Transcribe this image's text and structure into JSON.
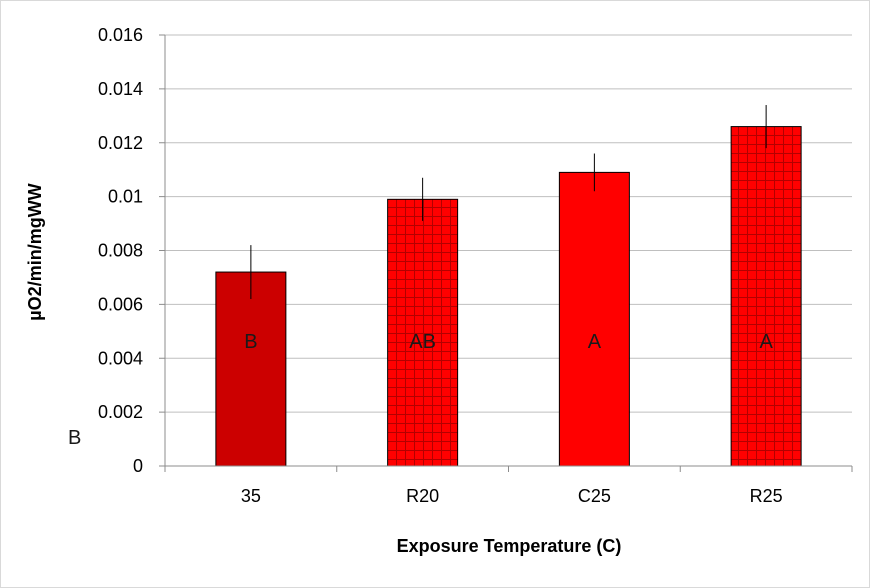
{
  "chart_data": {
    "type": "bar",
    "title": "",
    "xlabel": "Exposure Temperature (C)",
    "ylabel": "µO2/min/mgWW",
    "categories": [
      "35",
      "R20",
      "C25",
      "R25"
    ],
    "values": [
      0.0072,
      0.0099,
      0.0109,
      0.0126
    ],
    "error": [
      0.001,
      0.0008,
      0.0007,
      0.0008
    ],
    "annotations": [
      "B",
      "AB",
      "A",
      "A"
    ],
    "stray_label": "B",
    "ylim": [
      0,
      0.016
    ],
    "yticks": [
      "0",
      "0.002",
      "0.004",
      "0.006",
      "0.008",
      "0.01",
      "0.012",
      "0.014",
      "0.016"
    ],
    "yticks_values": [
      0,
      0.002,
      0.004,
      0.006,
      0.008,
      0.01,
      0.012,
      0.014,
      0.016
    ],
    "grid": true,
    "legend": "none",
    "bar_fills": [
      "solid",
      "grid",
      "solid",
      "grid"
    ],
    "colors": {
      "bar_dark": "#cc0000",
      "bar_bright": "#ff0000",
      "grid": "#bfbfbf",
      "axis": "#8c8c8c"
    }
  }
}
